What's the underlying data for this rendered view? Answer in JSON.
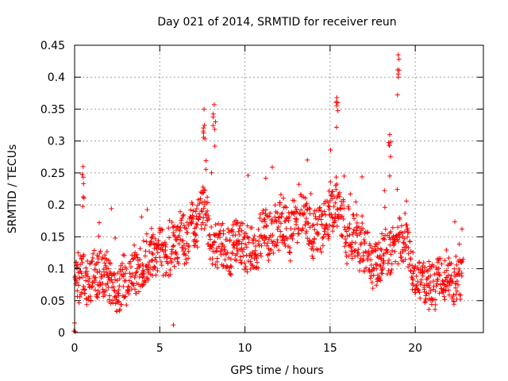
{
  "chart_data": {
    "type": "scatter",
    "title": "Day 021 of 2014, SRMTID for receiver reun",
    "xlabel": "GPS time / hours",
    "ylabel": "SRMTID / TECUs",
    "xlim": [
      0,
      24
    ],
    "ylim": [
      0,
      0.45
    ],
    "x_ticks": [
      "0",
      "5",
      "10",
      "15",
      "20"
    ],
    "y_ticks": [
      "0",
      "0.05",
      "0.1",
      "0.15",
      "0.2",
      "0.25",
      "0.3",
      "0.35",
      "0.4",
      "0.45"
    ],
    "grid": true,
    "marker": "+",
    "color": "#ff0000",
    "series_envelope": [
      {
        "x": 0.0,
        "y": 0.07
      },
      {
        "x": 0.5,
        "y": 0.08
      },
      {
        "x": 1.0,
        "y": 0.1
      },
      {
        "x": 1.5,
        "y": 0.11
      },
      {
        "x": 2.0,
        "y": 0.09
      },
      {
        "x": 2.5,
        "y": 0.07
      },
      {
        "x": 3.0,
        "y": 0.08
      },
      {
        "x": 3.5,
        "y": 0.11
      },
      {
        "x": 4.0,
        "y": 0.13
      },
      {
        "x": 4.5,
        "y": 0.135
      },
      {
        "x": 5.0,
        "y": 0.135
      },
      {
        "x": 5.5,
        "y": 0.12
      },
      {
        "x": 6.0,
        "y": 0.14
      },
      {
        "x": 6.5,
        "y": 0.16
      },
      {
        "x": 7.0,
        "y": 0.18
      },
      {
        "x": 7.5,
        "y": 0.2
      },
      {
        "x": 8.0,
        "y": 0.16
      },
      {
        "x": 8.5,
        "y": 0.13
      },
      {
        "x": 9.0,
        "y": 0.13
      },
      {
        "x": 9.5,
        "y": 0.14
      },
      {
        "x": 10.0,
        "y": 0.135
      },
      {
        "x": 10.5,
        "y": 0.13
      },
      {
        "x": 11.0,
        "y": 0.15
      },
      {
        "x": 11.5,
        "y": 0.16
      },
      {
        "x": 12.0,
        "y": 0.165
      },
      {
        "x": 12.5,
        "y": 0.18
      },
      {
        "x": 13.0,
        "y": 0.19
      },
      {
        "x": 13.5,
        "y": 0.19
      },
      {
        "x": 14.0,
        "y": 0.16
      },
      {
        "x": 14.5,
        "y": 0.17
      },
      {
        "x": 15.0,
        "y": 0.2
      },
      {
        "x": 15.5,
        "y": 0.2
      },
      {
        "x": 16.0,
        "y": 0.15
      },
      {
        "x": 16.5,
        "y": 0.14
      },
      {
        "x": 17.0,
        "y": 0.13
      },
      {
        "x": 17.5,
        "y": 0.12
      },
      {
        "x": 18.0,
        "y": 0.09
      },
      {
        "x": 18.5,
        "y": 0.11
      },
      {
        "x": 19.0,
        "y": 0.13
      },
      {
        "x": 19.5,
        "y": 0.14
      },
      {
        "x": 20.0,
        "y": 0.1
      },
      {
        "x": 20.5,
        "y": 0.1
      },
      {
        "x": 21.0,
        "y": 0.09
      },
      {
        "x": 21.5,
        "y": 0.1
      },
      {
        "x": 22.0,
        "y": 0.095
      },
      {
        "x": 22.5,
        "y": 0.08
      },
      {
        "x": 22.8,
        "y": 0.08
      }
    ],
    "notable_points": [
      {
        "x": 19.0,
        "y": 0.435
      },
      {
        "x": 15.4,
        "y": 0.368
      },
      {
        "x": 8.2,
        "y": 0.357
      },
      {
        "x": 7.6,
        "y": 0.35
      },
      {
        "x": 18.5,
        "y": 0.31
      },
      {
        "x": 0.5,
        "y": 0.26
      },
      {
        "x": 5.8,
        "y": 0.012
      },
      {
        "x": 0.0,
        "y": 0.015
      }
    ]
  }
}
